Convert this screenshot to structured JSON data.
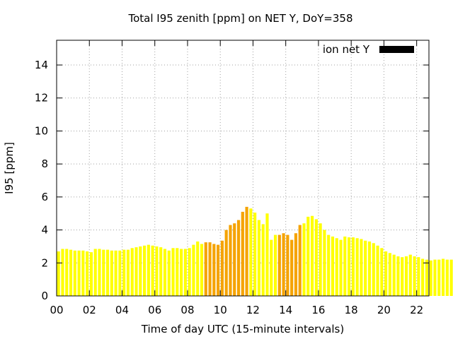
{
  "chart_data": {
    "type": "bar",
    "title": "Total I95 zenith [ppm] on NET Y, DoY=358",
    "xlabel": "Time of day UTC (15-minute intervals)",
    "ylabel": "I95 [ppm]",
    "xlim": [
      0,
      22.75
    ],
    "ylim": [
      0,
      15.5
    ],
    "x_ticks": [
      "00",
      "02",
      "04",
      "06",
      "08",
      "10",
      "12",
      "14",
      "16",
      "18",
      "20",
      "22"
    ],
    "y_ticks": [
      "0",
      "2",
      "4",
      "6",
      "8",
      "10",
      "12",
      "14"
    ],
    "grid": true,
    "legend_position": "top-right",
    "series": [
      {
        "name": "ion net Y",
        "legend_color": "#000000",
        "interval_hours": 0.25,
        "start_hour": 0,
        "values": [
          2.7,
          2.85,
          2.85,
          2.8,
          2.75,
          2.75,
          2.75,
          2.7,
          2.65,
          2.85,
          2.85,
          2.8,
          2.8,
          2.75,
          2.75,
          2.75,
          2.8,
          2.8,
          2.9,
          2.95,
          3.0,
          3.05,
          3.1,
          3.05,
          3.0,
          2.95,
          2.85,
          2.75,
          2.9,
          2.9,
          2.85,
          2.85,
          2.9,
          3.1,
          3.3,
          3.15,
          3.25,
          3.25,
          3.15,
          3.1,
          3.35,
          4.0,
          4.3,
          4.4,
          4.6,
          5.1,
          5.4,
          5.3,
          5.05,
          4.6,
          4.35,
          5.0,
          3.4,
          3.7,
          3.7,
          3.8,
          3.7,
          3.4,
          3.8,
          4.3,
          4.4,
          4.8,
          4.85,
          4.65,
          4.4,
          4.0,
          3.7,
          3.6,
          3.5,
          3.4,
          3.6,
          3.55,
          3.55,
          3.5,
          3.45,
          3.35,
          3.3,
          3.2,
          3.05,
          2.9,
          2.7,
          2.6,
          2.5,
          2.4,
          2.35,
          2.4,
          2.5,
          2.4,
          2.35,
          2.25,
          2.2,
          2.15,
          2.2,
          2.2,
          2.25,
          2.2,
          2.2,
          2.45
        ],
        "value_colors": {
          "low": "#ffff00",
          "mid": "#ffff33",
          "high": "#f5a300"
        },
        "high_hours": [
          9.0,
          11.75,
          13.5,
          15.0
        ]
      }
    ]
  }
}
